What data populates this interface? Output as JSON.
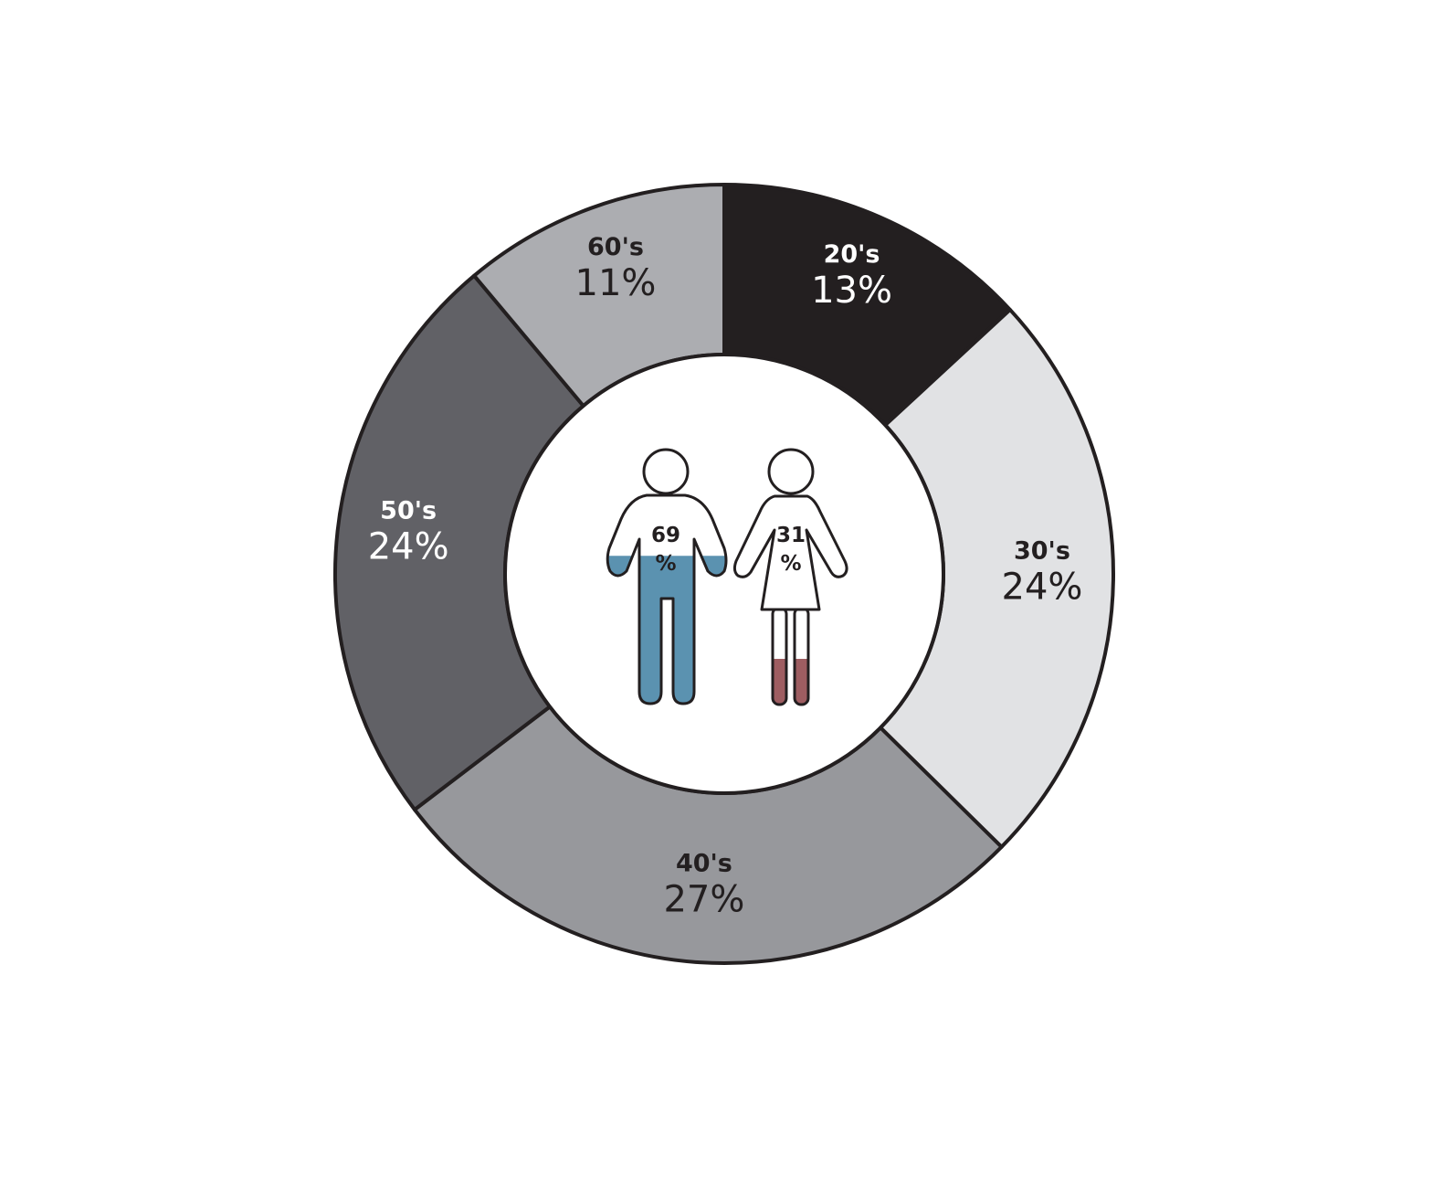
{
  "chart_data": {
    "type": "pie",
    "slices": [
      {
        "label": "20's",
        "value": 13,
        "value_text": "13%",
        "color": "#231f20",
        "text_color": "#ffffff"
      },
      {
        "label": "30's",
        "value": 24,
        "value_text": "24%",
        "color": "#e1e2e4",
        "text_color": "#231f20"
      },
      {
        "label": "40's",
        "value": 27,
        "value_text": "27%",
        "color": "#97989c",
        "text_color": "#231f20"
      },
      {
        "label": "50's",
        "value": 24,
        "value_text": "24%",
        "color": "#616166",
        "text_color": "#ffffff"
      },
      {
        "label": "60's",
        "value": 11,
        "value_text": "11%",
        "color": "#acadb1",
        "text_color": "#231f20"
      }
    ],
    "donut": true,
    "start": "top",
    "direction": "clockwise",
    "center_gender": [
      {
        "name": "male",
        "value": 69,
        "number_text": "69",
        "unit_text": "%",
        "color": "#5b92b0"
      },
      {
        "name": "female",
        "value": 31,
        "number_text": "31",
        "unit_text": "%",
        "color": "#9e5d61"
      }
    ]
  },
  "icons": {
    "male": "male-figure-icon",
    "female": "female-figure-icon"
  },
  "colors": {
    "outline": "#231f20",
    "background": "#ffffff"
  }
}
